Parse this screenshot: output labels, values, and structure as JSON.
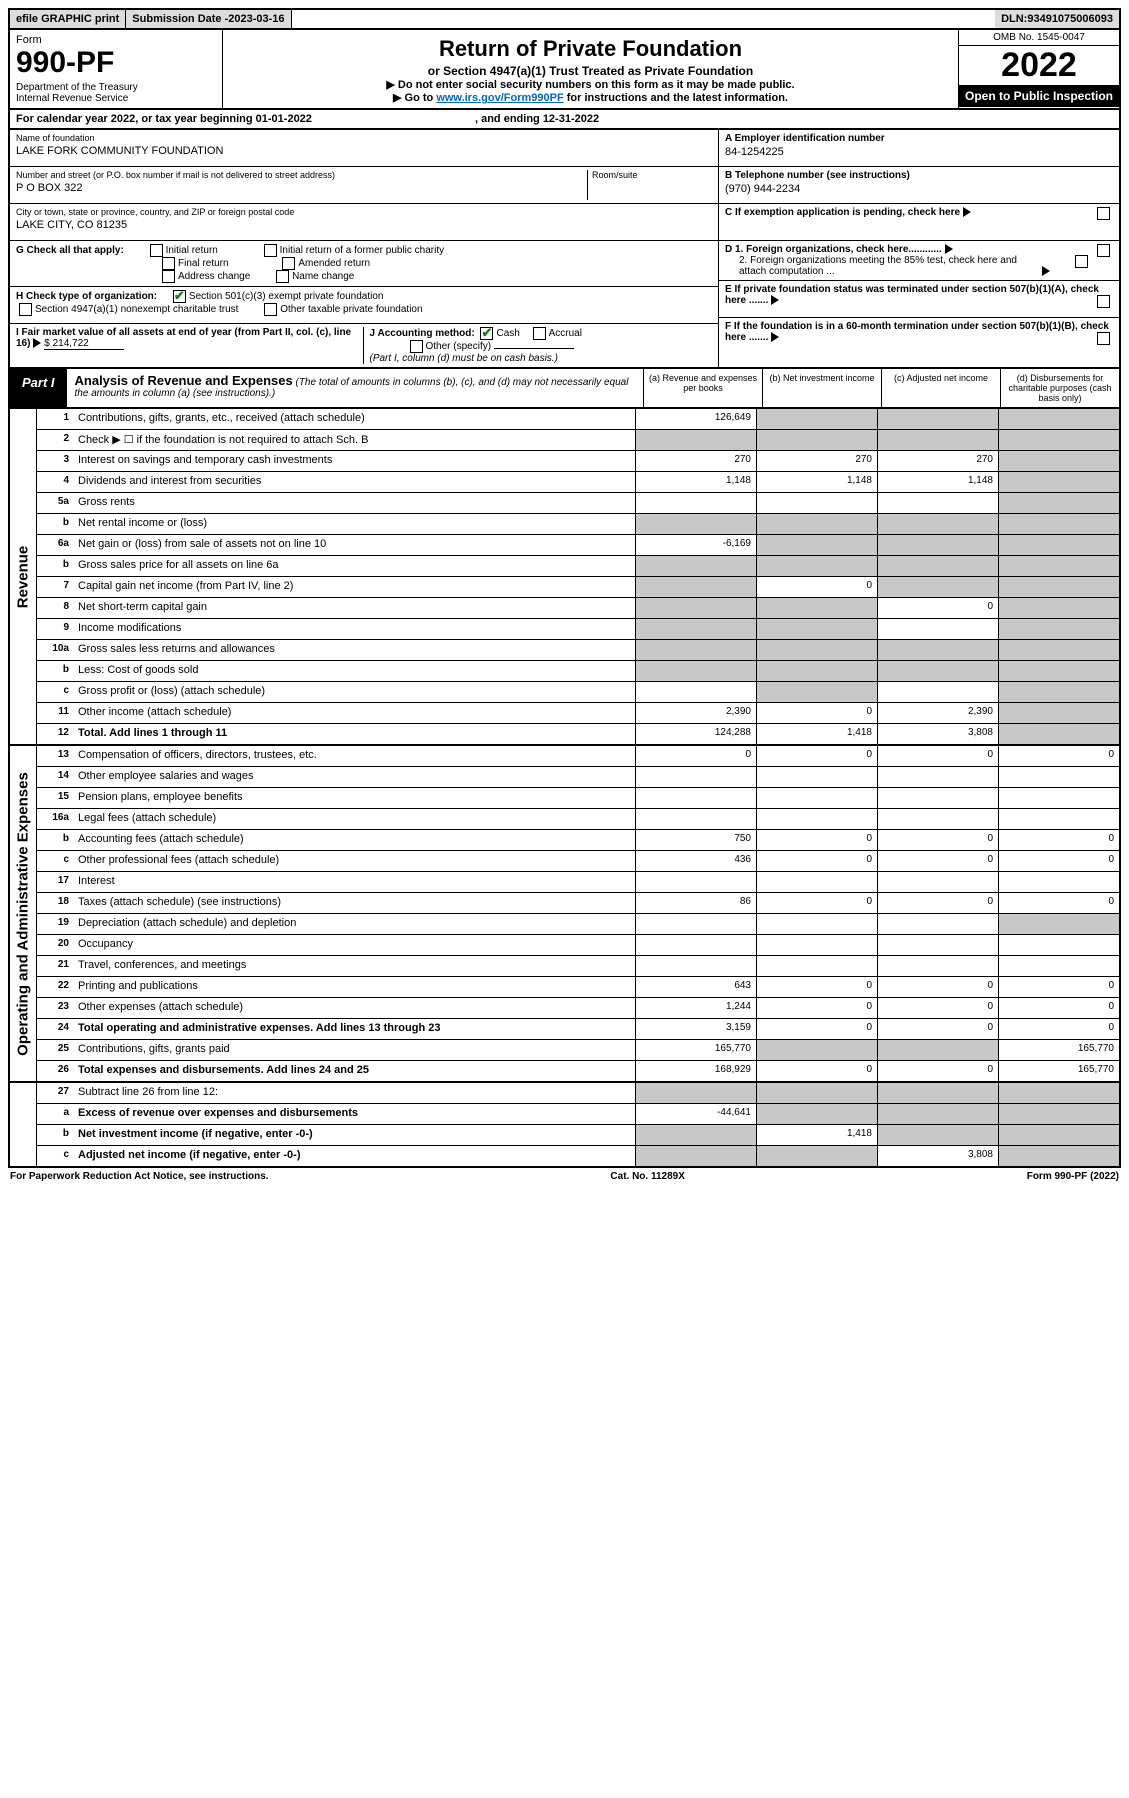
{
  "topbar": {
    "efile": "efile GRAPHIC print",
    "subdate_label": "Submission Date - ",
    "subdate": "2023-03-16",
    "dln_label": "DLN: ",
    "dln": "93491075006093"
  },
  "hdr": {
    "form_word": "Form",
    "form_no": "990-PF",
    "dept": "Department of the Treasury",
    "irs": "Internal Revenue Service",
    "title": "Return of Private Foundation",
    "sub": "or Section 4947(a)(1) Trust Treated as Private Foundation",
    "arrow1": "▶ Do not enter social security numbers on this form as it may be made public.",
    "arrow2_pre": "▶ Go to ",
    "arrow2_link": "www.irs.gov/Form990PF",
    "arrow2_post": " for instructions and the latest information.",
    "omb": "OMB No. 1545-0047",
    "year": "2022",
    "otp": "Open to Public Inspection"
  },
  "cal": {
    "text": "For calendar year 2022, or tax year beginning 01-01-2022",
    "end": ", and ending 12-31-2022"
  },
  "info": {
    "name_lbl": "Name of foundation",
    "name": "LAKE FORK COMMUNITY FOUNDATION",
    "addr_lbl": "Number and street (or P.O. box number if mail is not delivered to street address)",
    "addr": "P O BOX 322",
    "room_lbl": "Room/suite",
    "city_lbl": "City or town, state or province, country, and ZIP or foreign postal code",
    "city": "LAKE CITY, CO  81235",
    "G": "G Check all that apply:",
    "g_initial": "Initial return",
    "g_final": "Final return",
    "g_addr": "Address change",
    "g_initial_former": "Initial return of a former public charity",
    "g_amended": "Amended return",
    "g_name": "Name change",
    "H": "H Check type of organization:",
    "h_501c3": "Section 501(c)(3) exempt private foundation",
    "h_4947": "Section 4947(a)(1) nonexempt charitable trust",
    "h_other": "Other taxable private foundation",
    "I": "I Fair market value of all assets at end of year (from Part II, col. (c), line 16)",
    "I_val": "$  214,722",
    "J": "J Accounting method:",
    "j_cash": "Cash",
    "j_accrual": "Accrual",
    "j_other": "Other (specify)",
    "j_note": "(Part I, column (d) must be on cash basis.)",
    "A_lbl": "A Employer identification number",
    "A": "84-1254225",
    "B_lbl": "B Telephone number (see instructions)",
    "B": "(970) 944-2234",
    "C": "C If exemption application is pending, check here",
    "D1": "D 1. Foreign organizations, check here............",
    "D2": "2. Foreign organizations meeting the 85% test, check here and attach computation ...",
    "E": "E If private foundation status was terminated under section 507(b)(1)(A), check here .......",
    "F": "F If the foundation is in a 60-month termination under section 507(b)(1)(B), check here .......",
    "tri": "▶"
  },
  "part": {
    "badge": "Part I",
    "title": "Analysis of Revenue and Expenses",
    "note": " (The total of amounts in columns (b), (c), and (d) may not necessarily equal the amounts in column (a) (see instructions).)",
    "col_a": "(a) Revenue and expenses per books",
    "col_b": "(b) Net investment income",
    "col_c": "(c) Adjusted net income",
    "col_d": "(d) Disbursements for charitable purposes (cash basis only)"
  },
  "sides": {
    "rev": "Revenue",
    "exp": "Operating and Administrative Expenses"
  },
  "rows": {
    "r1": {
      "ln": "1",
      "d": "Contributions, gifts, grants, etc., received (attach schedule)",
      "a": "126,649"
    },
    "r2": {
      "ln": "2",
      "d": "Check ▶ ☐ if the foundation is not required to attach Sch. B"
    },
    "r3": {
      "ln": "3",
      "d": "Interest on savings and temporary cash investments",
      "a": "270",
      "b": "270",
      "c": "270"
    },
    "r4": {
      "ln": "4",
      "d": "Dividends and interest from securities",
      "a": "1,148",
      "b": "1,148",
      "c": "1,148"
    },
    "r5a": {
      "ln": "5a",
      "d": "Gross rents"
    },
    "r5b": {
      "ln": "b",
      "d": "Net rental income or (loss)"
    },
    "r6a": {
      "ln": "6a",
      "d": "Net gain or (loss) from sale of assets not on line 10",
      "a": "-6,169"
    },
    "r6b": {
      "ln": "b",
      "d": "Gross sales price for all assets on line 6a"
    },
    "r7": {
      "ln": "7",
      "d": "Capital gain net income (from Part IV, line 2)",
      "b": "0"
    },
    "r8": {
      "ln": "8",
      "d": "Net short-term capital gain",
      "c": "0"
    },
    "r9": {
      "ln": "9",
      "d": "Income modifications"
    },
    "r10a": {
      "ln": "10a",
      "d": "Gross sales less returns and allowances"
    },
    "r10b": {
      "ln": "b",
      "d": "Less: Cost of goods sold"
    },
    "r10c": {
      "ln": "c",
      "d": "Gross profit or (loss) (attach schedule)"
    },
    "r11": {
      "ln": "11",
      "d": "Other income (attach schedule)",
      "a": "2,390",
      "b": "0",
      "c": "2,390"
    },
    "r12": {
      "ln": "12",
      "d": "Total. Add lines 1 through 11",
      "a": "124,288",
      "b": "1,418",
      "c": "3,808",
      "bold": true
    },
    "r13": {
      "ln": "13",
      "d": "Compensation of officers, directors, trustees, etc.",
      "a": "0",
      "b": "0",
      "c": "0",
      "dd": "0"
    },
    "r14": {
      "ln": "14",
      "d": "Other employee salaries and wages"
    },
    "r15": {
      "ln": "15",
      "d": "Pension plans, employee benefits"
    },
    "r16a": {
      "ln": "16a",
      "d": "Legal fees (attach schedule)"
    },
    "r16b": {
      "ln": "b",
      "d": "Accounting fees (attach schedule)",
      "a": "750",
      "b": "0",
      "c": "0",
      "dd": "0"
    },
    "r16c": {
      "ln": "c",
      "d": "Other professional fees (attach schedule)",
      "a": "436",
      "b": "0",
      "c": "0",
      "dd": "0"
    },
    "r17": {
      "ln": "17",
      "d": "Interest"
    },
    "r18": {
      "ln": "18",
      "d": "Taxes (attach schedule) (see instructions)",
      "a": "86",
      "b": "0",
      "c": "0",
      "dd": "0"
    },
    "r19": {
      "ln": "19",
      "d": "Depreciation (attach schedule) and depletion"
    },
    "r20": {
      "ln": "20",
      "d": "Occupancy"
    },
    "r21": {
      "ln": "21",
      "d": "Travel, conferences, and meetings"
    },
    "r22": {
      "ln": "22",
      "d": "Printing and publications",
      "a": "643",
      "b": "0",
      "c": "0",
      "dd": "0"
    },
    "r23": {
      "ln": "23",
      "d": "Other expenses (attach schedule)",
      "a": "1,244",
      "b": "0",
      "c": "0",
      "dd": "0"
    },
    "r24": {
      "ln": "24",
      "d": "Total operating and administrative expenses. Add lines 13 through 23",
      "a": "3,159",
      "b": "0",
      "c": "0",
      "dd": "0",
      "bold": true
    },
    "r25": {
      "ln": "25",
      "d": "Contributions, gifts, grants paid",
      "a": "165,770",
      "dd": "165,770"
    },
    "r26": {
      "ln": "26",
      "d": "Total expenses and disbursements. Add lines 24 and 25",
      "a": "168,929",
      "b": "0",
      "c": "0",
      "dd": "165,770",
      "bold": true
    },
    "r27": {
      "ln": "27",
      "d": "Subtract line 26 from line 12:"
    },
    "r27a": {
      "ln": "a",
      "d": "Excess of revenue over expenses and disbursements",
      "a": "-44,641",
      "bold": true
    },
    "r27b": {
      "ln": "b",
      "d": "Net investment income (if negative, enter -0-)",
      "b": "1,418",
      "bold": true
    },
    "r27c": {
      "ln": "c",
      "d": "Adjusted net income (if negative, enter -0-)",
      "c": "3,808",
      "bold": true
    }
  },
  "footer": {
    "left": "For Paperwork Reduction Act Notice, see instructions.",
    "mid": "Cat. No. 11289X",
    "right": "Form 990-PF (2022)"
  }
}
